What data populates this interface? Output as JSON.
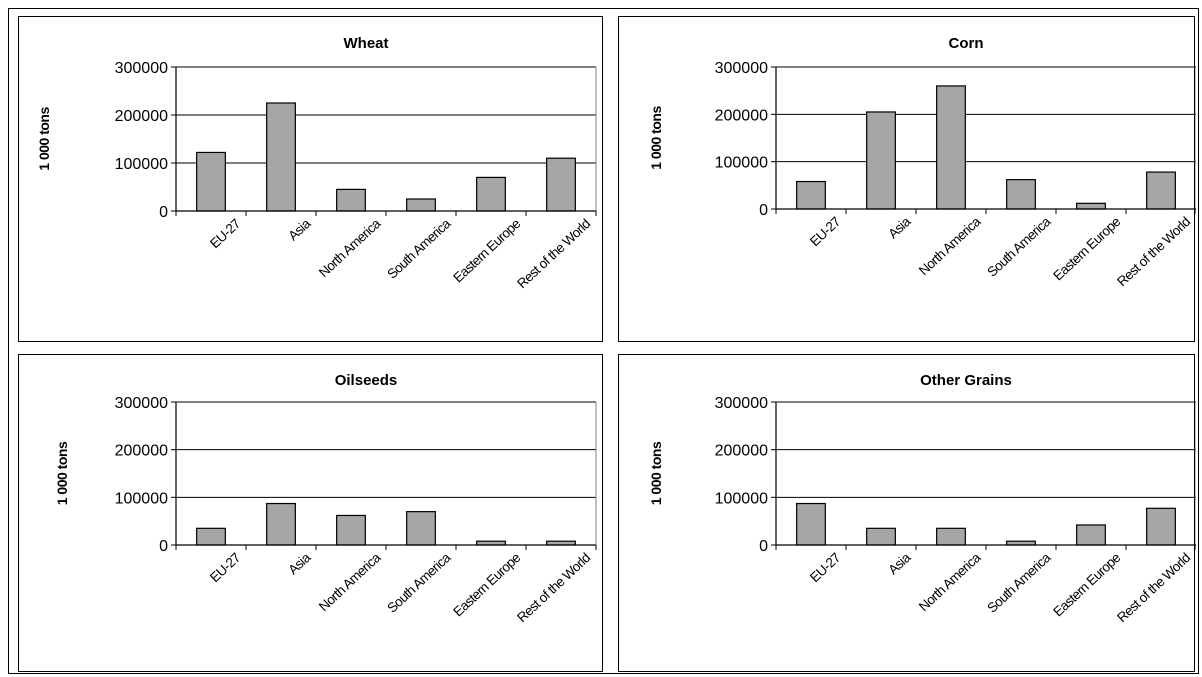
{
  "chart_data": [
    {
      "type": "bar",
      "title": "Wheat",
      "ylabel": "1 000 tons",
      "categories": [
        "EU-27",
        "Asia",
        "North America",
        "South America",
        "Eastern Europe",
        "Rest of the World"
      ],
      "values": [
        122000,
        225000,
        45000,
        25000,
        70000,
        110000
      ],
      "ylim": [
        0,
        300000
      ],
      "yticks": [
        "0",
        "100000",
        "200000",
        "300000"
      ],
      "grid": true,
      "bar_color": "#a6a6a6"
    },
    {
      "type": "bar",
      "title": "Corn",
      "ylabel": "1 000 tons",
      "categories": [
        "EU-27",
        "Asia",
        "North America",
        "South America",
        "Eastern Europe",
        "Rest of the World"
      ],
      "values": [
        58000,
        205000,
        260000,
        62000,
        12000,
        78000
      ],
      "ylim": [
        0,
        300000
      ],
      "yticks": [
        "0",
        "100000",
        "200000",
        "300000"
      ],
      "grid": true,
      "bar_color": "#a6a6a6"
    },
    {
      "type": "bar",
      "title": "Oilseeds",
      "ylabel": "1 000 tons",
      "categories": [
        "EU-27",
        "Asia",
        "North America",
        "South America",
        "Eastern Europe",
        "Rest of the World"
      ],
      "values": [
        35000,
        87000,
        62000,
        70000,
        8000,
        8000
      ],
      "ylim": [
        0,
        300000
      ],
      "yticks": [
        "0",
        "100000",
        "200000",
        "300000"
      ],
      "grid": true,
      "bar_color": "#a6a6a6"
    },
    {
      "type": "bar",
      "title": "Other Grains",
      "ylabel": "1 000 tons",
      "categories": [
        "EU-27",
        "Asia",
        "North America",
        "South America",
        "Eastern Europe",
        "Rest of the World"
      ],
      "values": [
        87000,
        35000,
        35000,
        8000,
        42000,
        77000
      ],
      "ylim": [
        0,
        300000
      ],
      "yticks": [
        "0",
        "100000",
        "200000",
        "300000"
      ],
      "grid": true,
      "bar_color": "#a6a6a6"
    }
  ]
}
